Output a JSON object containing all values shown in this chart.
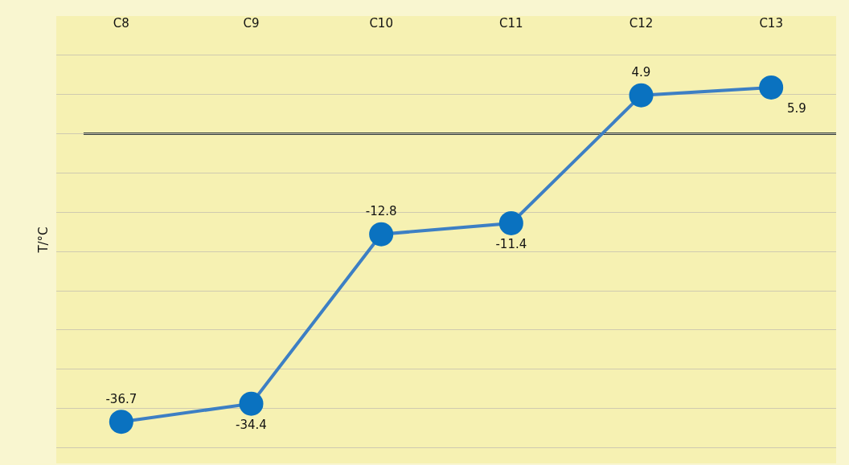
{
  "chart_data": {
    "type": "line",
    "ylabel": "T/°C",
    "categories": [
      "C8",
      "C9",
      "C10",
      "C11",
      "C12",
      "C13"
    ],
    "series": [
      {
        "color": "#3d7fc4",
        "values": [
          -36.7,
          -34.4,
          -12.8,
          -11.4,
          4.9,
          5.9
        ]
      }
    ],
    "marker": "circle",
    "data_labels": true,
    "grid": "y",
    "ylim": [
      -42,
      15
    ],
    "yticks": [
      {
        "value": -40,
        "label": null
      },
      {
        "value": -35,
        "label": null
      },
      {
        "value": -30,
        "label": null
      },
      {
        "value": -25,
        "label": null
      },
      {
        "value": -20,
        "label": null
      },
      {
        "value": -15,
        "label": null
      },
      {
        "value": -10,
        "label": null
      },
      {
        "value": -5,
        "label": null
      },
      {
        "value": 0,
        "label": null
      },
      {
        "value": 5,
        "label": null
      },
      {
        "value": 10,
        "label": null
      }
    ],
    "tick_labels": "x",
    "ref_lines": [
      {
        "axis": "y",
        "value": 0,
        "color": "#2f3a3a"
      }
    ]
  }
}
